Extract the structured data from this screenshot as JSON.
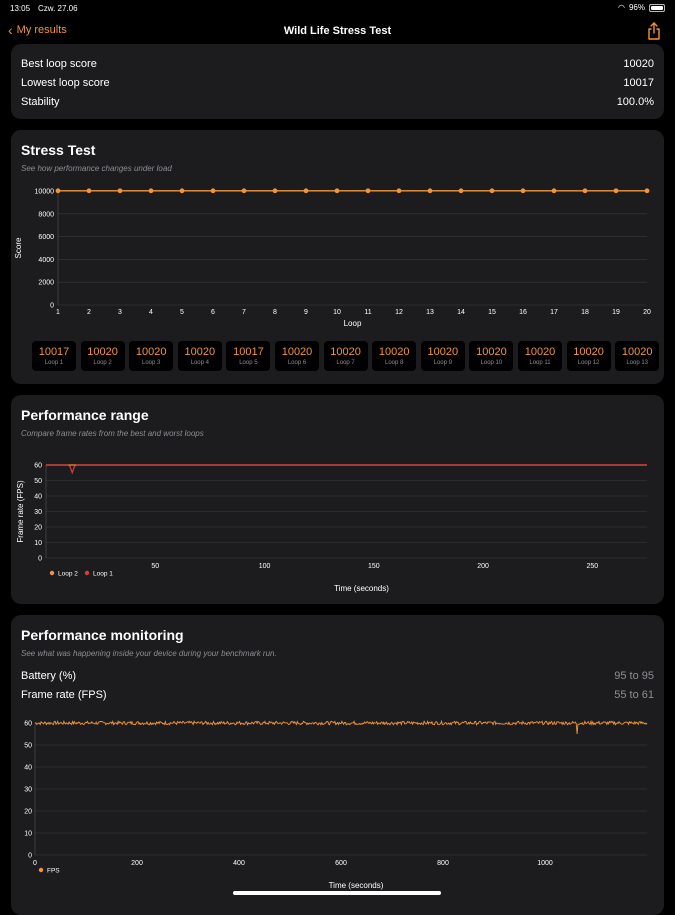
{
  "status_bar": {
    "time": "13:05",
    "date": "Czw. 27.06",
    "battery": "96%"
  },
  "nav": {
    "back_label": "My results",
    "title": "Wild Life Stress Test"
  },
  "summary": {
    "rows": [
      {
        "label": "Best loop score",
        "value": "10020"
      },
      {
        "label": "Lowest loop score",
        "value": "10017"
      },
      {
        "label": "Stability",
        "value": "100.0%"
      }
    ]
  },
  "stress_test": {
    "title": "Stress Test",
    "subtitle": "See how performance changes under load",
    "chips": [
      {
        "value": "10017",
        "label": "Loop 1"
      },
      {
        "value": "10020",
        "label": "Loop 2"
      },
      {
        "value": "10020",
        "label": "Loop 3"
      },
      {
        "value": "10020",
        "label": "Loop 4"
      },
      {
        "value": "10017",
        "label": "Loop 5"
      },
      {
        "value": "10020",
        "label": "Loop 6"
      },
      {
        "value": "10020",
        "label": "Loop 7"
      },
      {
        "value": "10020",
        "label": "Loop 8"
      },
      {
        "value": "10020",
        "label": "Loop 9"
      },
      {
        "value": "10020",
        "label": "Loop 10"
      },
      {
        "value": "10020",
        "label": "Loop 11"
      },
      {
        "value": "10020",
        "label": "Loop 12"
      },
      {
        "value": "10020",
        "label": "Loop 13"
      }
    ]
  },
  "performance_range": {
    "title": "Performance range",
    "subtitle": "Compare frame rates from the best and worst loops"
  },
  "performance_monitoring": {
    "title": "Performance monitoring",
    "subtitle": "See what was happening inside your device during your benchmark run.",
    "rows": [
      {
        "label": "Battery (%)",
        "value": "95 to 95"
      },
      {
        "label": "Frame rate (FPS)",
        "value": "55 to 61"
      }
    ]
  },
  "chart_data": [
    {
      "type": "line",
      "xlabel": "Loop",
      "ylabel": "Score",
      "ylim": [
        0,
        10000
      ],
      "yticks": [
        0,
        2000,
        4000,
        6000,
        8000,
        10000
      ],
      "x": [
        1,
        2,
        3,
        4,
        5,
        6,
        7,
        8,
        9,
        10,
        11,
        12,
        13,
        14,
        15,
        16,
        17,
        18,
        19,
        20
      ],
      "series": [
        {
          "values": [
            10017,
            10020,
            10020,
            10020,
            10017,
            10020,
            10020,
            10020,
            10020,
            10020,
            10020,
            10020,
            10020,
            10020,
            10020,
            10020,
            10020,
            10020,
            10020,
            10020
          ],
          "color": "#f0953a"
        }
      ],
      "grid": true
    },
    {
      "type": "line",
      "xlabel": "Time (seconds)",
      "ylabel": "Frame rate (FPS)",
      "ylim": [
        0,
        60
      ],
      "yticks": [
        0,
        10,
        20,
        30,
        40,
        50,
        60
      ],
      "xlim": [
        0,
        275
      ],
      "xticks": [
        50,
        100,
        150,
        200,
        250
      ],
      "series": [
        {
          "name": "Loop 2",
          "color": "#f0953a",
          "points": [
            [
              0,
              60
            ],
            [
              275,
              60
            ]
          ]
        },
        {
          "name": "Loop 1",
          "color": "#e0383e",
          "points": [
            [
              0,
              60
            ],
            [
              10,
              60
            ],
            [
              11,
              59
            ],
            [
              12,
              55
            ],
            [
              13,
              59
            ],
            [
              14,
              60
            ],
            [
              275,
              60
            ]
          ]
        }
      ],
      "legend": "bottom-left",
      "grid": true
    },
    {
      "type": "line",
      "xlabel": "Time (seconds)",
      "ylabel": "",
      "ylim": [
        0,
        60
      ],
      "yticks": [
        0,
        10,
        20,
        30,
        40,
        50,
        60
      ],
      "xlim": [
        0,
        1200
      ],
      "xticks": [
        0,
        200,
        400,
        600,
        800,
        1000
      ],
      "series": [
        {
          "name": "FPS",
          "color": "#f0953a",
          "min": 55,
          "max": 61,
          "typical": 60
        }
      ],
      "legend": "bottom-left",
      "grid": true
    }
  ]
}
